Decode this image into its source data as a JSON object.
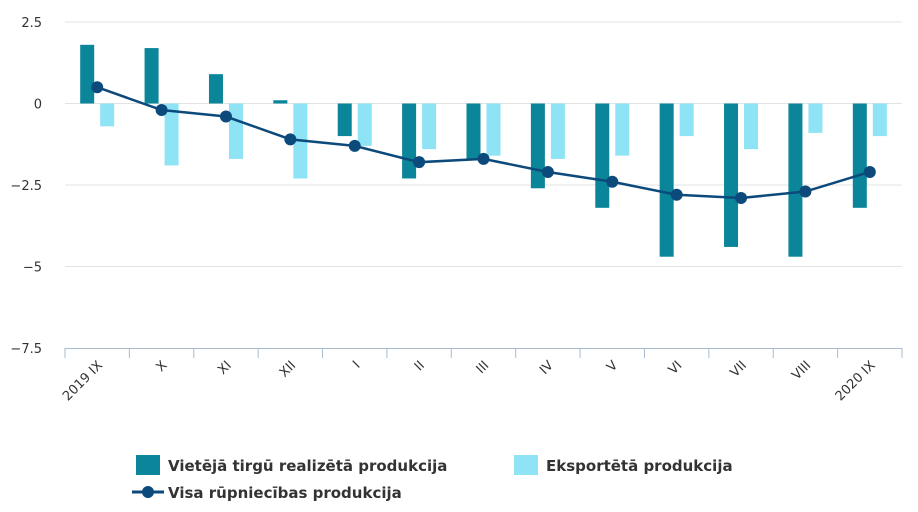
{
  "chart_data": {
    "type": "bar",
    "categories": [
      "2019 IX",
      "X",
      "XI",
      "XII",
      "I",
      "II",
      "III",
      "IV",
      "V",
      "VI",
      "VII",
      "VIII",
      "2020 IX"
    ],
    "ylim": [
      -7.5,
      2.5
    ],
    "yticks": [
      2.5,
      0,
      -2.5,
      -5,
      -7.5
    ],
    "ytick_labels": [
      "2.5",
      "0",
      "−2.5",
      "−5",
      "−7.5"
    ],
    "grid": true,
    "legend_position": "bottom",
    "series": [
      {
        "name": "Vietējā tirgū realizētā produkcija",
        "type": "bar",
        "color": "#0a8599",
        "values": [
          1.8,
          1.7,
          0.9,
          0.1,
          -1.0,
          -2.3,
          -1.7,
          -2.6,
          -3.2,
          -4.7,
          -4.4,
          -4.7,
          -3.2
        ]
      },
      {
        "name": "Eksportētā produkcija",
        "type": "bar",
        "color": "#8ee3f5",
        "values": [
          -0.7,
          -1.9,
          -1.7,
          -2.3,
          -1.3,
          -1.4,
          -1.6,
          -1.7,
          -1.6,
          -1.0,
          -1.4,
          -0.9,
          -1.0
        ]
      },
      {
        "name": "Visa rūpniecības produkcija",
        "type": "line",
        "color": "#0d4a7c",
        "values": [
          0.5,
          -0.2,
          -0.4,
          -1.1,
          -1.3,
          -1.8,
          -1.7,
          -2.1,
          -2.4,
          -2.8,
          -2.9,
          -2.7,
          -2.1
        ]
      }
    ]
  }
}
